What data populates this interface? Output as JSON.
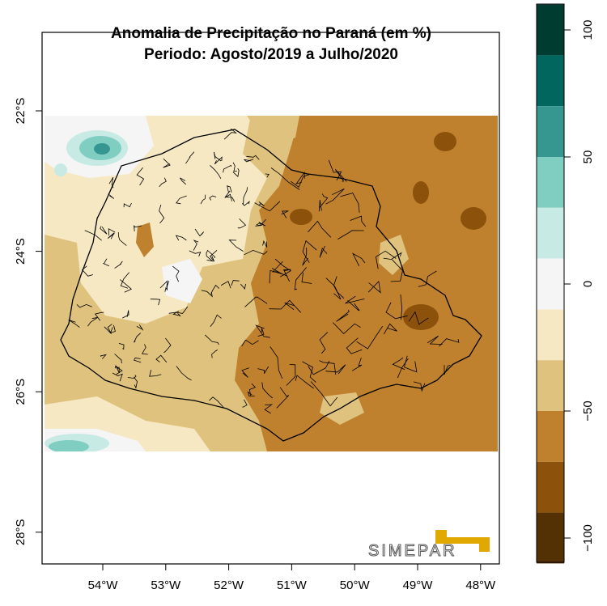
{
  "title": {
    "line1": "Anomalia de Precipitação no Paraná (em %)",
    "line2": "Periodo: Agosto/2019 a Julho/2020"
  },
  "axes": {
    "x_ticks": [
      {
        "value": -54,
        "label": "54°W"
      },
      {
        "value": -53,
        "label": "53°W"
      },
      {
        "value": -52,
        "label": "52°W"
      },
      {
        "value": -51,
        "label": "51°W"
      },
      {
        "value": -50,
        "label": "50°W"
      },
      {
        "value": -49,
        "label": "49°W"
      },
      {
        "value": -48,
        "label": "48°W"
      }
    ],
    "y_ticks": [
      {
        "value": -22,
        "label": "22°S"
      },
      {
        "value": -24,
        "label": "24°S"
      },
      {
        "value": -26,
        "label": "26°S"
      },
      {
        "value": -28,
        "label": "28°S"
      }
    ]
  },
  "colorbar": {
    "unit": "%",
    "bins": [
      {
        "min": 90,
        "max": 110,
        "color": "#003c30"
      },
      {
        "min": 70,
        "max": 90,
        "color": "#01665e"
      },
      {
        "min": 50,
        "max": 70,
        "color": "#35978f"
      },
      {
        "min": 30,
        "max": 50,
        "color": "#80cdc1"
      },
      {
        "min": 10,
        "max": 30,
        "color": "#c7eae5"
      },
      {
        "min": -10,
        "max": 10,
        "color": "#f5f5f5"
      },
      {
        "min": -30,
        "max": -10,
        "color": "#f6e8c3"
      },
      {
        "min": -50,
        "max": -30,
        "color": "#dfc27d"
      },
      {
        "min": -70,
        "max": -50,
        "color": "#bf812d"
      },
      {
        "min": -90,
        "max": -70,
        "color": "#8c510a"
      },
      {
        "min": -110,
        "max": -90,
        "color": "#543005"
      }
    ],
    "ticks": [
      {
        "value": 100,
        "label": "100"
      },
      {
        "value": 50,
        "label": "50"
      },
      {
        "value": 0,
        "label": "0"
      },
      {
        "value": -50,
        "label": "−50"
      },
      {
        "value": -100,
        "label": "−100"
      }
    ]
  },
  "logo": {
    "text": "SIMEPAR",
    "color": "#e0a800"
  }
}
